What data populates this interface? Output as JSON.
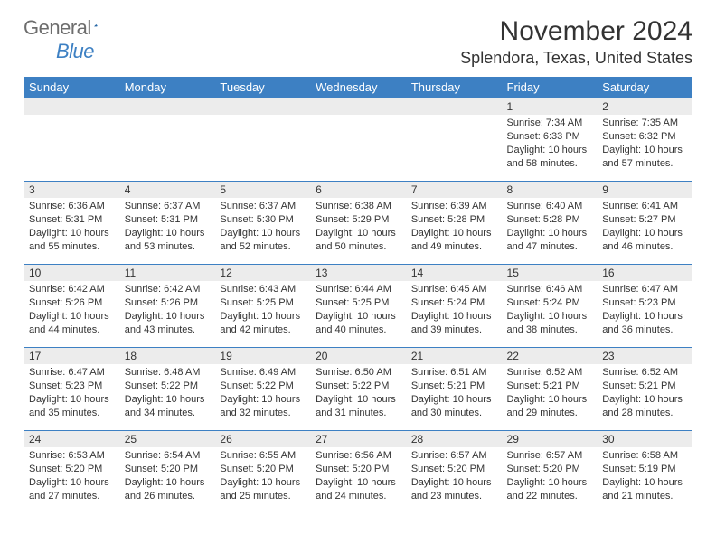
{
  "logo": {
    "word1": "General",
    "word2": "Blue",
    "shape_color": "#1f5f9e"
  },
  "header": {
    "title": "November 2024",
    "location": "Splendora, Texas, United States"
  },
  "colors": {
    "header_bg": "#3d80c3",
    "header_text": "#ffffff",
    "daynum_bg": "#ececec",
    "border": "#3d80c3",
    "text": "#333333",
    "logo_gray": "#6d6d6d",
    "logo_blue": "#3d80c3"
  },
  "day_headers": [
    "Sunday",
    "Monday",
    "Tuesday",
    "Wednesday",
    "Thursday",
    "Friday",
    "Saturday"
  ],
  "weeks": [
    [
      null,
      null,
      null,
      null,
      null,
      {
        "n": "1",
        "sr": "7:34 AM",
        "ss": "6:33 PM",
        "dh": "10",
        "dm": "58"
      },
      {
        "n": "2",
        "sr": "7:35 AM",
        "ss": "6:32 PM",
        "dh": "10",
        "dm": "57"
      }
    ],
    [
      {
        "n": "3",
        "sr": "6:36 AM",
        "ss": "5:31 PM",
        "dh": "10",
        "dm": "55"
      },
      {
        "n": "4",
        "sr": "6:37 AM",
        "ss": "5:31 PM",
        "dh": "10",
        "dm": "53"
      },
      {
        "n": "5",
        "sr": "6:37 AM",
        "ss": "5:30 PM",
        "dh": "10",
        "dm": "52"
      },
      {
        "n": "6",
        "sr": "6:38 AM",
        "ss": "5:29 PM",
        "dh": "10",
        "dm": "50"
      },
      {
        "n": "7",
        "sr": "6:39 AM",
        "ss": "5:28 PM",
        "dh": "10",
        "dm": "49"
      },
      {
        "n": "8",
        "sr": "6:40 AM",
        "ss": "5:28 PM",
        "dh": "10",
        "dm": "47"
      },
      {
        "n": "9",
        "sr": "6:41 AM",
        "ss": "5:27 PM",
        "dh": "10",
        "dm": "46"
      }
    ],
    [
      {
        "n": "10",
        "sr": "6:42 AM",
        "ss": "5:26 PM",
        "dh": "10",
        "dm": "44"
      },
      {
        "n": "11",
        "sr": "6:42 AM",
        "ss": "5:26 PM",
        "dh": "10",
        "dm": "43"
      },
      {
        "n": "12",
        "sr": "6:43 AM",
        "ss": "5:25 PM",
        "dh": "10",
        "dm": "42"
      },
      {
        "n": "13",
        "sr": "6:44 AM",
        "ss": "5:25 PM",
        "dh": "10",
        "dm": "40"
      },
      {
        "n": "14",
        "sr": "6:45 AM",
        "ss": "5:24 PM",
        "dh": "10",
        "dm": "39"
      },
      {
        "n": "15",
        "sr": "6:46 AM",
        "ss": "5:24 PM",
        "dh": "10",
        "dm": "38"
      },
      {
        "n": "16",
        "sr": "6:47 AM",
        "ss": "5:23 PM",
        "dh": "10",
        "dm": "36"
      }
    ],
    [
      {
        "n": "17",
        "sr": "6:47 AM",
        "ss": "5:23 PM",
        "dh": "10",
        "dm": "35"
      },
      {
        "n": "18",
        "sr": "6:48 AM",
        "ss": "5:22 PM",
        "dh": "10",
        "dm": "34"
      },
      {
        "n": "19",
        "sr": "6:49 AM",
        "ss": "5:22 PM",
        "dh": "10",
        "dm": "32"
      },
      {
        "n": "20",
        "sr": "6:50 AM",
        "ss": "5:22 PM",
        "dh": "10",
        "dm": "31"
      },
      {
        "n": "21",
        "sr": "6:51 AM",
        "ss": "5:21 PM",
        "dh": "10",
        "dm": "30"
      },
      {
        "n": "22",
        "sr": "6:52 AM",
        "ss": "5:21 PM",
        "dh": "10",
        "dm": "29"
      },
      {
        "n": "23",
        "sr": "6:52 AM",
        "ss": "5:21 PM",
        "dh": "10",
        "dm": "28"
      }
    ],
    [
      {
        "n": "24",
        "sr": "6:53 AM",
        "ss": "5:20 PM",
        "dh": "10",
        "dm": "27"
      },
      {
        "n": "25",
        "sr": "6:54 AM",
        "ss": "5:20 PM",
        "dh": "10",
        "dm": "26"
      },
      {
        "n": "26",
        "sr": "6:55 AM",
        "ss": "5:20 PM",
        "dh": "10",
        "dm": "25"
      },
      {
        "n": "27",
        "sr": "6:56 AM",
        "ss": "5:20 PM",
        "dh": "10",
        "dm": "24"
      },
      {
        "n": "28",
        "sr": "6:57 AM",
        "ss": "5:20 PM",
        "dh": "10",
        "dm": "23"
      },
      {
        "n": "29",
        "sr": "6:57 AM",
        "ss": "5:20 PM",
        "dh": "10",
        "dm": "22"
      },
      {
        "n": "30",
        "sr": "6:58 AM",
        "ss": "5:19 PM",
        "dh": "10",
        "dm": "21"
      }
    ]
  ],
  "labels": {
    "sunrise_prefix": "Sunrise: ",
    "sunset_prefix": "Sunset: ",
    "daylight_prefix": "Daylight: ",
    "hours_word": " hours",
    "and_word": "and ",
    "minutes_word": " minutes."
  }
}
